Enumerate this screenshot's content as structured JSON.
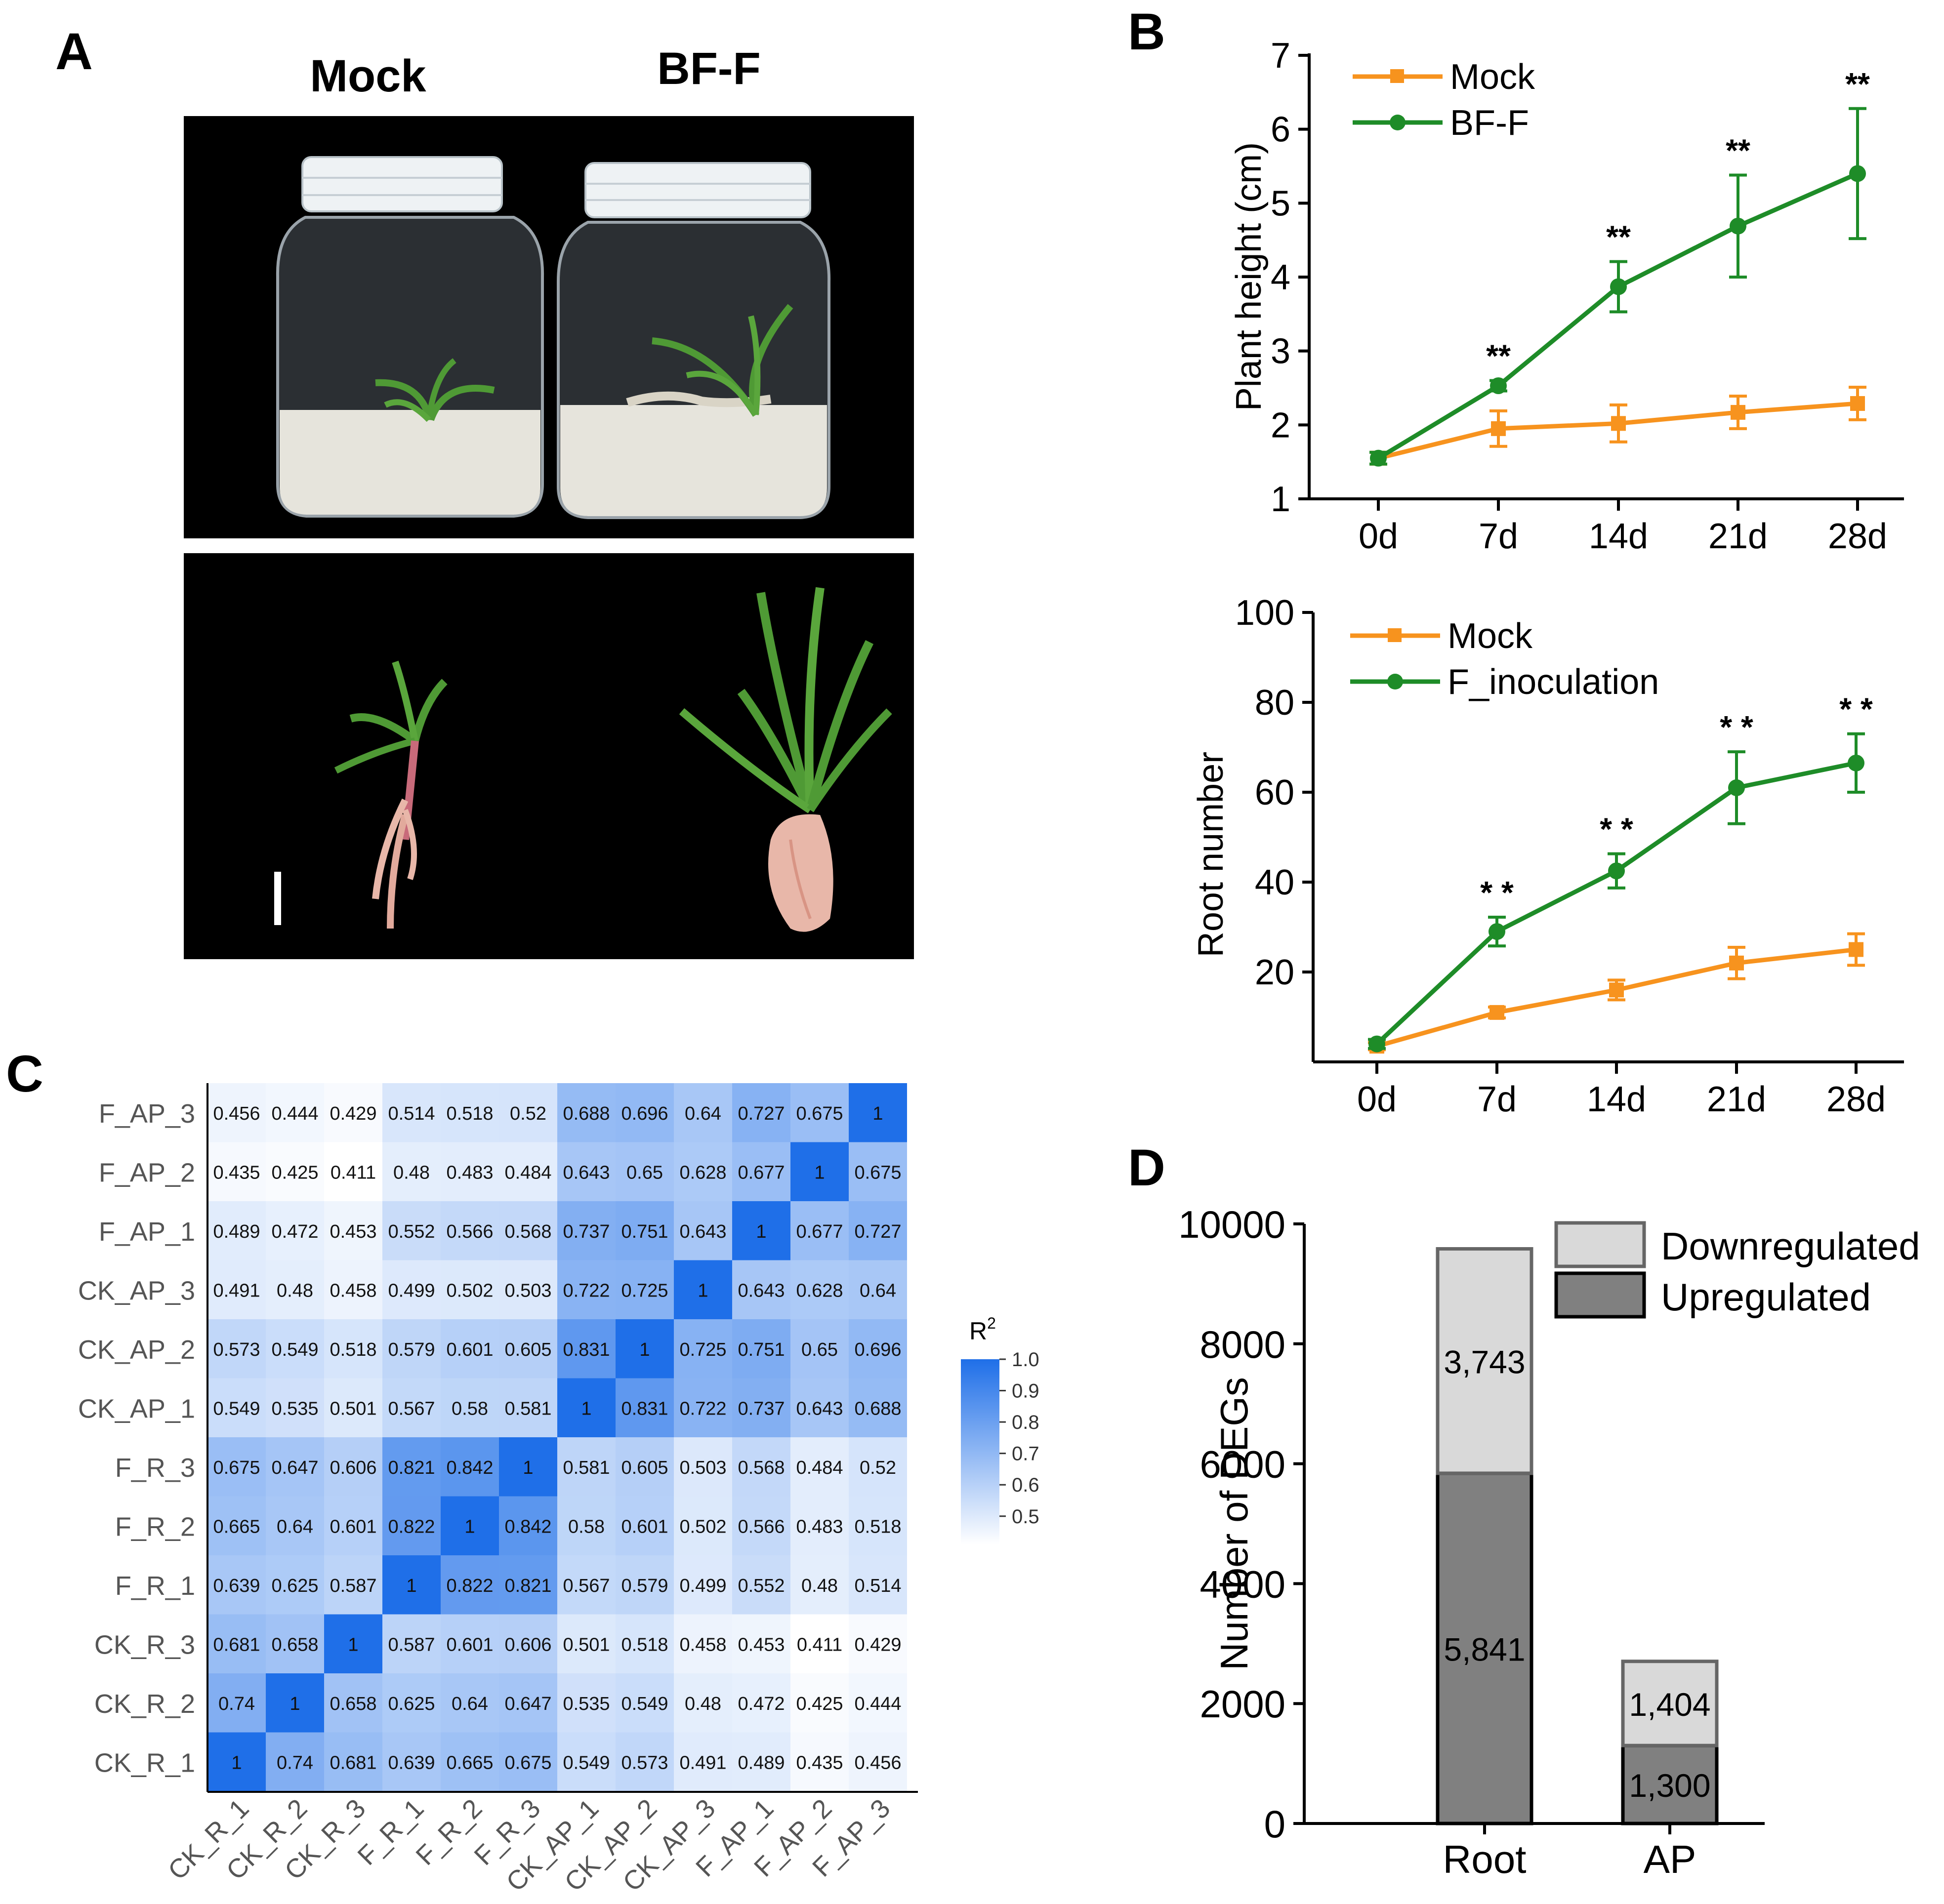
{
  "panel_labels": {
    "a": "A",
    "b": "B",
    "c": "C",
    "d": "D"
  },
  "panel_a": {
    "label_left": "Mock",
    "label_right": "BF-F",
    "colors": {
      "background": "#000000",
      "lid": "#eef2f4",
      "medium": "#e6e4dc",
      "leaf": "#4f9a35",
      "stem": "#c86a7a",
      "root": "#e8b7a9"
    }
  },
  "chart_data": [
    {
      "type": "line",
      "id": "plant_height",
      "categories": [
        "0d",
        "7d",
        "14d",
        "21d",
        "28d"
      ],
      "ylabel": "Plant height (cm)",
      "xlabel": "",
      "ylim": [
        1,
        7
      ],
      "yticks": [
        1,
        2,
        3,
        4,
        5,
        6,
        7
      ],
      "legend_position": "top-left",
      "series": [
        {
          "name": "Mock",
          "color": "#f7931e",
          "marker": "square",
          "values": [
            1.55,
            1.95,
            2.02,
            2.17,
            2.29
          ],
          "errors": [
            0.08,
            0.24,
            0.25,
            0.22,
            0.22
          ]
        },
        {
          "name": "BF-F",
          "color": "#1e8c28",
          "marker": "circle",
          "values": [
            1.55,
            2.53,
            3.87,
            4.69,
            5.4
          ],
          "errors": [
            0.08,
            0.07,
            0.34,
            0.69,
            0.88
          ]
        }
      ],
      "significance": [
        "",
        "**",
        "**",
        "**",
        "**"
      ]
    },
    {
      "type": "line",
      "id": "root_number",
      "categories": [
        "0d",
        "7d",
        "14d",
        "21d",
        "28d"
      ],
      "ylabel": "Root number",
      "xlabel": "",
      "ylim": [
        0,
        100
      ],
      "yticks": [
        20,
        40,
        60,
        80,
        100
      ],
      "legend_position": "top-left",
      "series": [
        {
          "name": "Mock",
          "color": "#f7931e",
          "marker": "square",
          "values": [
            3.5,
            11,
            16,
            22,
            25
          ],
          "errors": [
            0.8,
            1.2,
            2.2,
            3.5,
            3.5
          ]
        },
        {
          "name": "F_inoculation",
          "color": "#1e8c28",
          "marker": "circle",
          "values": [
            4,
            29,
            42.5,
            61,
            66.5
          ],
          "errors": [
            1,
            3.2,
            3.8,
            8,
            6.5
          ]
        }
      ],
      "significance": [
        "",
        "* *",
        "* *",
        "* *",
        "* *"
      ]
    },
    {
      "type": "heatmap",
      "id": "correlation",
      "legend_title": "R",
      "legend_title_sup": "2",
      "legend_ticks": [
        "1.0",
        "0.9",
        "0.8",
        "0.7",
        "0.6",
        "0.5"
      ],
      "color_low": "#ffffff",
      "color_high": "#1f6fe8",
      "samples": [
        "CK_R_1",
        "CK_R_2",
        "CK_R_3",
        "F_R_1",
        "F_R_2",
        "F_R_3",
        "CK_AP_1",
        "CK_AP_2",
        "CK_AP_3",
        "F_AP_1",
        "F_AP_2",
        "F_AP_3"
      ],
      "rows_top_to_bottom": [
        "F_AP_3",
        "F_AP_2",
        "F_AP_1",
        "CK_AP_3",
        "CK_AP_2",
        "CK_AP_1",
        "F_R_3",
        "F_R_2",
        "F_R_1",
        "CK_R_3",
        "CK_R_2",
        "CK_R_1"
      ],
      "values": [
        [
          "0.456",
          "0.444",
          "0.429",
          "0.514",
          "0.518",
          "0.52",
          "0.688",
          "0.696",
          "0.64",
          "0.727",
          "0.675",
          "1"
        ],
        [
          "0.435",
          "0.425",
          "0.411",
          "0.48",
          "0.483",
          "0.484",
          "0.643",
          "0.65",
          "0.628",
          "0.677",
          "1",
          "0.675"
        ],
        [
          "0.489",
          "0.472",
          "0.453",
          "0.552",
          "0.566",
          "0.568",
          "0.737",
          "0.751",
          "0.643",
          "1",
          "0.677",
          "0.727"
        ],
        [
          "0.491",
          "0.48",
          "0.458",
          "0.499",
          "0.502",
          "0.503",
          "0.722",
          "0.725",
          "1",
          "0.643",
          "0.628",
          "0.64"
        ],
        [
          "0.573",
          "0.549",
          "0.518",
          "0.579",
          "0.601",
          "0.605",
          "0.831",
          "1",
          "0.725",
          "0.751",
          "0.65",
          "0.696"
        ],
        [
          "0.549",
          "0.535",
          "0.501",
          "0.567",
          "0.58",
          "0.581",
          "1",
          "0.831",
          "0.722",
          "0.737",
          "0.643",
          "0.688"
        ],
        [
          "0.675",
          "0.647",
          "0.606",
          "0.821",
          "0.842",
          "1",
          "0.581",
          "0.605",
          "0.503",
          "0.568",
          "0.484",
          "0.52"
        ],
        [
          "0.665",
          "0.64",
          "0.601",
          "0.822",
          "1",
          "0.842",
          "0.58",
          "0.601",
          "0.502",
          "0.566",
          "0.483",
          "0.518"
        ],
        [
          "0.639",
          "0.625",
          "0.587",
          "1",
          "0.822",
          "0.821",
          "0.567",
          "0.579",
          "0.499",
          "0.552",
          "0.48",
          "0.514"
        ],
        [
          "0.681",
          "0.658",
          "1",
          "0.587",
          "0.601",
          "0.606",
          "0.501",
          "0.518",
          "0.458",
          "0.453",
          "0.411",
          "0.429"
        ],
        [
          "0.74",
          "1",
          "0.658",
          "0.625",
          "0.64",
          "0.647",
          "0.535",
          "0.549",
          "0.48",
          "0.472",
          "0.425",
          "0.444"
        ],
        [
          "1",
          "0.74",
          "0.681",
          "0.639",
          "0.665",
          "0.675",
          "0.549",
          "0.573",
          "0.491",
          "0.489",
          "0.435",
          "0.456"
        ]
      ]
    },
    {
      "type": "bar",
      "stacked": true,
      "id": "degs",
      "categories": [
        "Root",
        "AP"
      ],
      "ylabel": "Number of DEGs",
      "xlabel": "",
      "ylim": [
        0,
        10000
      ],
      "yticks": [
        0,
        2000,
        4000,
        6000,
        8000,
        10000
      ],
      "legend_position": "top-right",
      "series": [
        {
          "name": "Upregulated",
          "color": "#808080",
          "values": [
            5841,
            1300
          ],
          "labels": [
            "5,841",
            "1,300"
          ]
        },
        {
          "name": "Downregulated",
          "color": "#d9d9d9",
          "values": [
            3743,
            1404
          ],
          "labels": [
            "3,743",
            "1,404"
          ]
        }
      ]
    }
  ]
}
